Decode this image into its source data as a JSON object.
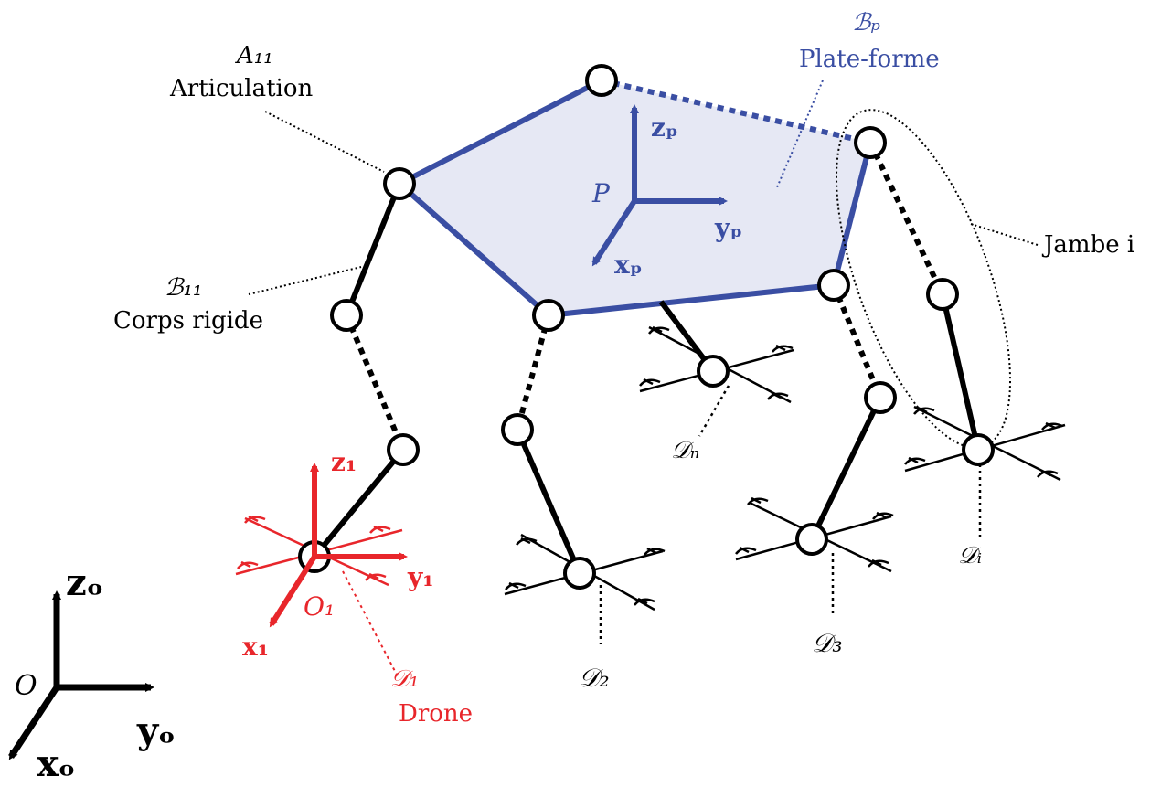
{
  "labels": {
    "articulation_symbol": "A₁₁",
    "articulation_text": "Articulation",
    "platform_symbol": "ℬₚ",
    "platform_text": "Plate-forme",
    "body_symbol": "ℬ₁₁",
    "body_text": "Corps rigide",
    "leg_text": "Jambe i",
    "point_P": "P",
    "zp": "zₚ",
    "yp": "yₚ",
    "xp": "xₚ",
    "z1": "z₁",
    "y1": "y₁",
    "x1": "x₁",
    "O1": "O₁",
    "D1_symbol": "𝒟₁",
    "D1_text": "Drone",
    "D2": "𝒟₂",
    "D3": "𝒟₃",
    "Dn": "𝒟ₙ",
    "Di": "𝒟ᵢ",
    "origin_O": "O",
    "zo": "zₒ",
    "yo": "yₒ",
    "xo": "xₒ"
  },
  "colors": {
    "platform": "#3a4ea3",
    "platform_fill": "#e6e8f4",
    "drone_frame": "#e8262b",
    "structure": "#000000"
  }
}
